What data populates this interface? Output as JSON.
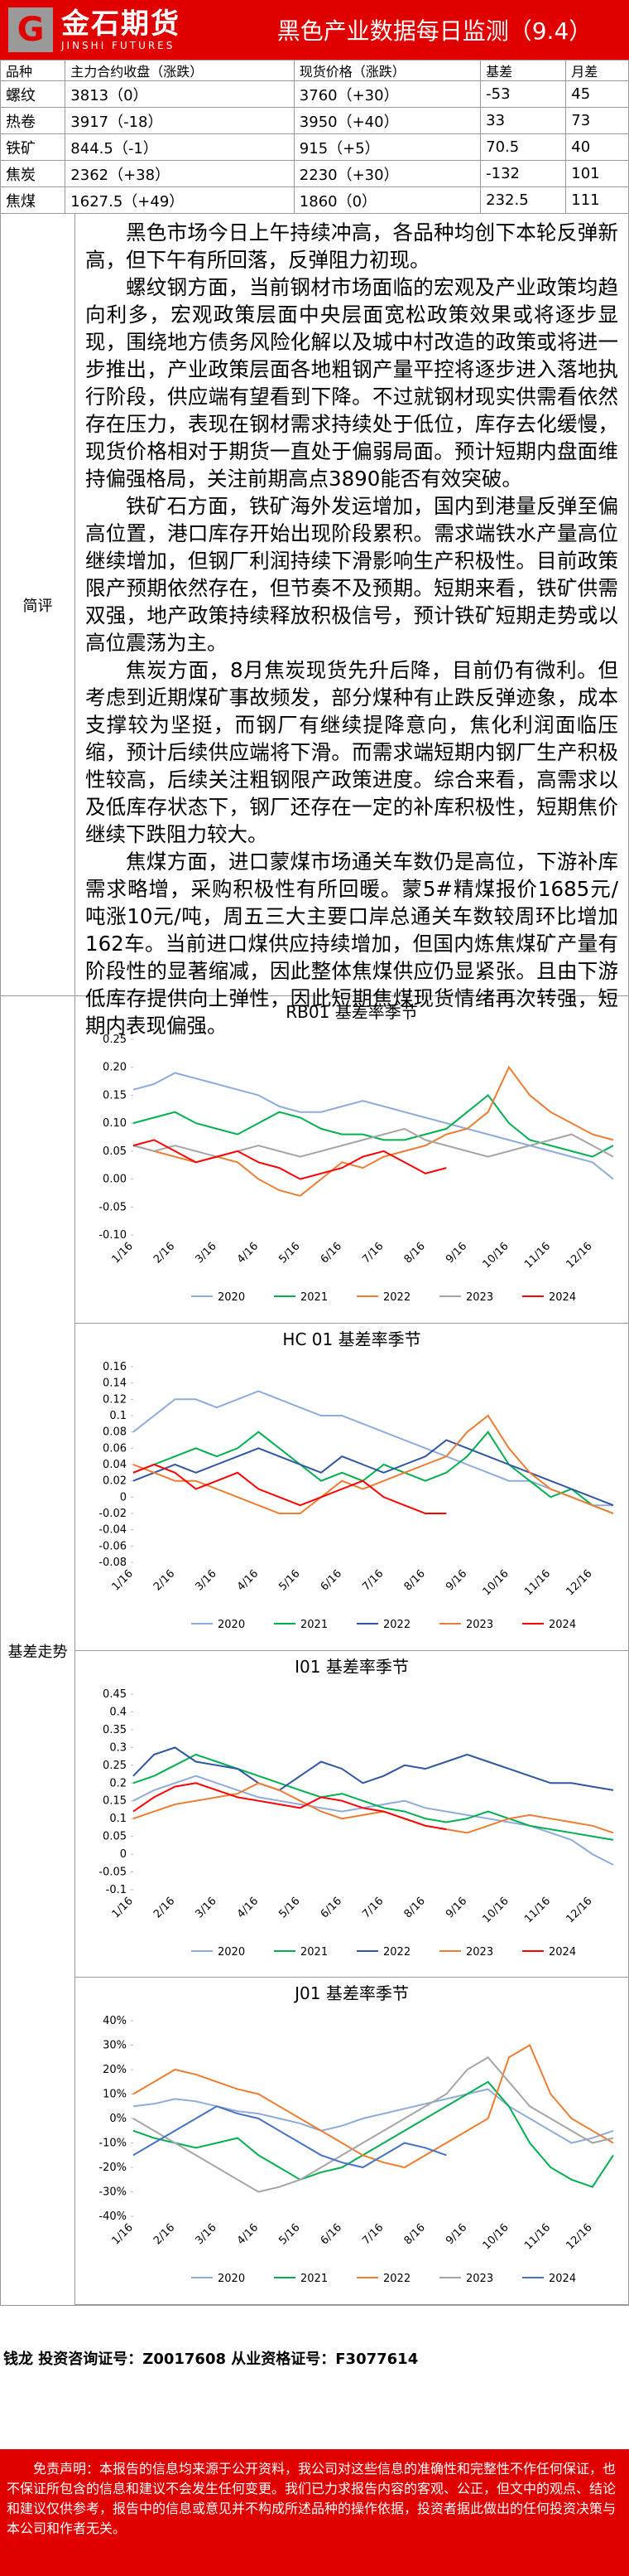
{
  "header": {
    "logo_cn": "金石期货",
    "logo_en": "JINSHI FUTURES",
    "title": "黑色产业数据每日监测（9.4）"
  },
  "table": {
    "header": [
      "品种",
      "主力合约收盘（涨跌）",
      "现货价格（涨跌）",
      "基差",
      "月差"
    ],
    "rows": [
      [
        "螺纹",
        "3813（0）",
        "3760（+30）",
        "-53",
        "45"
      ],
      [
        "热卷",
        "3917（-18）",
        "3950（+40）",
        "33",
        "73"
      ],
      [
        "铁矿",
        "844.5（-1）",
        "915（+5）",
        "70.5",
        "40"
      ],
      [
        "焦炭",
        "2362（+38）",
        "2230（+30）",
        "-132",
        "101"
      ],
      [
        "焦煤",
        "1627.5（+49）",
        "1860（0）",
        "232.5",
        "111"
      ]
    ]
  },
  "commentary": {
    "label": "简评",
    "paragraphs": [
      "黑色市场今日上午持续冲高，各品种均创下本轮反弹新高，但下午有所回落，反弹阻力初现。",
      "螺纹钢方面，当前钢材市场面临的宏观及产业政策均趋向利多，宏观政策层面中央层面宽松政策效果或将逐步显现，围绕地方债务风险化解以及城中村改造的政策或将进一步推出，产业政策层面各地粗钢产量平控将逐步进入落地执行阶段，供应端有望看到下降。不过就钢材现实供需看依然存在压力，表现在钢材需求持续处于低位，库存去化缓慢，现货价格相对于期货一直处于偏弱局面。预计短期内盘面维持偏强格局，关注前期高点3890能否有效突破。",
      "铁矿石方面，铁矿海外发运增加，国内到港量反弹至偏高位置，港口库存开始出现阶段累积。需求端铁水产量高位继续增加，但钢厂利润持续下滑影响生产积极性。目前政策限产预期依然存在，但节奏不及预期。短期来看，铁矿供需双强，地产政策持续释放积极信号，预计铁矿短期走势或以高位震荡为主。",
      "焦炭方面，8月焦炭现货先升后降，目前仍有微利。但考虑到近期煤矿事故频发，部分煤种有止跌反弹迹象，成本支撑较为坚挺，而钢厂有继续提降意向，焦化利润面临压缩，预计后续供应端将下滑。而需求端短期内钢厂生产积极性较高，后续关注粗钢限产政策进度。综合来看，高需求以及低库存状态下，钢厂还存在一定的补库积极性，短期焦价继续下跌阻力较大。",
      "焦煤方面，进口蒙煤市场通关车数仍是高位，下游补库需求略增，采购积极性有所回暖。蒙5#精煤报价1685元/吨涨10元/吨，周五三大主要口岸总通关车数较周环比增加162车。当前进口煤供应持续增加，但国内炼焦煤矿产量有阶段性的显著缩减，因此整体焦煤供应仍显紧张。且由下游低库存提供向上弹性，因此短期焦煤现货情绪再次转强，短期内表现偏强。"
    ]
  },
  "basis": {
    "label": "基差走势"
  },
  "chart_data": [
    {
      "type": "line",
      "title": "RB01 基差率季节",
      "categories": [
        "1/16",
        null,
        "2/16",
        null,
        "3/16",
        null,
        "4/16",
        null,
        "5/16",
        null,
        "6/16",
        null,
        "7/16",
        null,
        "8/16",
        null,
        "9/16",
        null,
        "10/16",
        null,
        "11/16",
        null,
        "12/16",
        null
      ],
      "ylim": [
        -0.1,
        0.25
      ],
      "yticks": [
        {
          "value": -0.1,
          "label": "-0.10"
        },
        {
          "value": -0.05,
          "label": "-0.05"
        },
        {
          "value": 0,
          "label": "0.00"
        },
        {
          "value": 0.05,
          "label": "0.05"
        },
        {
          "value": 0.1,
          "label": "0.10"
        },
        {
          "value": 0.15,
          "label": "0.15"
        },
        {
          "value": 0.2,
          "label": "0.20"
        },
        {
          "value": 0.25,
          "label": "0.25"
        }
      ],
      "grid": false,
      "series": [
        {
          "name": "2020",
          "color": "#8faadc",
          "values": [
            0.16,
            0.17,
            0.19,
            0.18,
            0.17,
            0.16,
            0.15,
            0.13,
            0.12,
            0.12,
            0.13,
            0.14,
            0.13,
            0.12,
            0.11,
            0.1,
            0.09,
            0.08,
            0.07,
            0.06,
            0.05,
            0.04,
            0.03,
            0.0
          ]
        },
        {
          "name": "2021",
          "color": "#00b050",
          "values": [
            0.1,
            0.11,
            0.12,
            0.1,
            0.09,
            0.08,
            0.1,
            0.12,
            0.11,
            0.09,
            0.08,
            0.08,
            0.07,
            0.07,
            0.08,
            0.09,
            0.12,
            0.15,
            0.1,
            0.07,
            0.06,
            0.05,
            0.04,
            0.06
          ]
        },
        {
          "name": "2022",
          "color": "#ed7d31",
          "values": [
            0.06,
            0.05,
            0.04,
            0.03,
            0.04,
            0.03,
            0.0,
            -0.02,
            -0.03,
            0.0,
            0.03,
            0.02,
            0.04,
            0.05,
            0.06,
            0.08,
            0.09,
            0.12,
            0.2,
            0.15,
            0.12,
            0.1,
            0.08,
            0.07
          ]
        },
        {
          "name": "2023",
          "color": "#a5a5a5",
          "values": [
            0.06,
            0.05,
            0.06,
            0.05,
            0.04,
            0.05,
            0.06,
            0.05,
            0.04,
            0.05,
            0.06,
            0.07,
            0.08,
            0.09,
            0.07,
            0.06,
            0.05,
            0.04,
            0.05,
            0.06,
            0.07,
            0.08,
            0.06,
            0.04
          ]
        },
        {
          "name": "2024",
          "color": "#ff0000",
          "values": [
            0.06,
            0.07,
            0.05,
            0.03,
            0.04,
            0.05,
            0.03,
            0.02,
            0.0,
            0.01,
            0.02,
            0.04,
            0.05,
            0.03,
            0.01,
            0.02,
            null,
            null,
            null,
            null,
            null,
            null,
            null,
            null
          ]
        }
      ]
    },
    {
      "type": "line",
      "title": "HC 01 基差率季节",
      "categories": [
        "1/16",
        null,
        "2/16",
        null,
        "3/16",
        null,
        "4/16",
        null,
        "5/16",
        null,
        "6/16",
        null,
        "7/16",
        null,
        "8/16",
        null,
        "9/16",
        null,
        "10/16",
        null,
        "11/16",
        null,
        "12/16",
        null
      ],
      "ylim": [
        -0.08,
        0.16
      ],
      "yticks": [
        -0.08,
        -0.06,
        -0.04,
        -0.02,
        0,
        0.02,
        0.04,
        0.06,
        0.08,
        0.1,
        0.12,
        0.14,
        0.16
      ],
      "grid": false,
      "series": [
        {
          "name": "2020",
          "color": "#8faadc",
          "values": [
            0.08,
            0.1,
            0.12,
            0.12,
            0.11,
            0.12,
            0.13,
            0.12,
            0.11,
            0.1,
            0.1,
            0.09,
            0.08,
            0.07,
            0.06,
            0.05,
            0.04,
            0.03,
            0.02,
            0.02,
            0.01,
            0.0,
            -0.01,
            -0.01
          ]
        },
        {
          "name": "2021",
          "color": "#00b050",
          "values": [
            0.03,
            0.04,
            0.05,
            0.06,
            0.05,
            0.06,
            0.08,
            0.06,
            0.04,
            0.02,
            0.03,
            0.02,
            0.04,
            0.03,
            0.02,
            0.03,
            0.05,
            0.08,
            0.04,
            0.02,
            0.0,
            0.01,
            -0.01,
            -0.02
          ]
        },
        {
          "name": "2022",
          "color": "#2f55a4",
          "values": [
            0.02,
            0.03,
            0.04,
            0.03,
            0.04,
            0.05,
            0.06,
            0.05,
            0.04,
            0.03,
            0.05,
            0.04,
            0.03,
            0.04,
            0.05,
            0.07,
            0.06,
            0.05,
            0.04,
            0.03,
            0.02,
            0.01,
            0.0,
            -0.01
          ]
        },
        {
          "name": "2023",
          "color": "#ed7d31",
          "values": [
            0.04,
            0.03,
            0.02,
            0.02,
            0.01,
            0.0,
            -0.01,
            -0.02,
            -0.02,
            0.0,
            0.02,
            0.01,
            0.02,
            0.03,
            0.04,
            0.05,
            0.08,
            0.1,
            0.06,
            0.03,
            0.01,
            0.0,
            -0.01,
            -0.02
          ]
        },
        {
          "name": "2024",
          "color": "#ff0000",
          "values": [
            0.03,
            0.04,
            0.03,
            0.01,
            0.02,
            0.03,
            0.01,
            0.0,
            -0.01,
            0.0,
            0.01,
            0.02,
            0.0,
            -0.01,
            -0.02,
            -0.02,
            null,
            null,
            null,
            null,
            null,
            null,
            null,
            null
          ]
        }
      ]
    },
    {
      "type": "line",
      "title": "I01 基差率季节",
      "categories": [
        "1/16",
        null,
        "2/16",
        null,
        "3/16",
        null,
        "4/16",
        null,
        "5/16",
        null,
        "6/16",
        null,
        "7/16",
        null,
        "8/16",
        null,
        "9/16",
        null,
        "10/16",
        null,
        "11/16",
        null,
        "12/16",
        null
      ],
      "ylim": [
        -0.1,
        0.45
      ],
      "yticks": [
        -0.1,
        -0.05,
        0,
        0.05,
        0.1,
        0.15,
        0.2,
        0.25,
        0.3,
        0.35,
        0.4,
        0.45
      ],
      "grid": false,
      "series": [
        {
          "name": "2020",
          "color": "#8faadc",
          "values": [
            0.15,
            0.18,
            0.2,
            0.22,
            0.2,
            0.18,
            0.16,
            0.15,
            0.14,
            0.13,
            0.12,
            0.13,
            0.14,
            0.15,
            0.13,
            0.12,
            0.11,
            0.1,
            0.09,
            0.08,
            0.06,
            0.04,
            0.0,
            -0.03
          ]
        },
        {
          "name": "2021",
          "color": "#00b050",
          "values": [
            0.2,
            0.22,
            0.25,
            0.28,
            0.26,
            0.24,
            0.22,
            0.2,
            0.18,
            0.16,
            0.17,
            0.15,
            0.13,
            0.12,
            0.1,
            0.09,
            0.1,
            0.12,
            0.1,
            0.08,
            0.07,
            0.06,
            0.05,
            0.04
          ]
        },
        {
          "name": "2022",
          "color": "#2f55a4",
          "values": [
            0.22,
            0.28,
            0.3,
            0.26,
            0.25,
            0.24,
            0.2,
            0.18,
            0.22,
            0.26,
            0.24,
            0.2,
            0.22,
            0.25,
            0.24,
            0.26,
            0.28,
            0.26,
            0.24,
            0.22,
            0.2,
            0.2,
            0.19,
            0.18
          ]
        },
        {
          "name": "2023",
          "color": "#ed7d31",
          "values": [
            0.1,
            0.12,
            0.14,
            0.15,
            0.16,
            0.17,
            0.2,
            0.18,
            0.15,
            0.12,
            0.1,
            0.11,
            0.12,
            0.1,
            0.08,
            0.07,
            0.06,
            0.08,
            0.1,
            0.11,
            0.1,
            0.09,
            0.08,
            0.06
          ]
        },
        {
          "name": "2024",
          "color": "#ff0000",
          "values": [
            0.12,
            0.16,
            0.19,
            0.2,
            0.18,
            0.16,
            0.15,
            0.14,
            0.13,
            0.16,
            0.15,
            0.13,
            0.12,
            0.1,
            0.08,
            0.07,
            null,
            null,
            null,
            null,
            null,
            null,
            null,
            null
          ]
        }
      ]
    },
    {
      "type": "line",
      "title": "J01 基差率季节",
      "categories": [
        "1/16",
        null,
        "2/16",
        null,
        "3/16",
        null,
        "4/16",
        null,
        "5/16",
        null,
        "6/16",
        null,
        "7/16",
        null,
        "8/16",
        null,
        "9/16",
        null,
        "10/16",
        null,
        "11/16",
        null,
        "12/16",
        null
      ],
      "ylim": [
        -40,
        40
      ],
      "yticks": [
        {
          "value": -40,
          "label": "-40%"
        },
        {
          "value": -30,
          "label": "-30%"
        },
        {
          "value": -20,
          "label": "-20%"
        },
        {
          "value": -10,
          "label": "-10%"
        },
        {
          "value": 0,
          "label": "0%"
        },
        {
          "value": 10,
          "label": "10%"
        },
        {
          "value": 20,
          "label": "20%"
        },
        {
          "value": 30,
          "label": "30%"
        },
        {
          "value": 40,
          "label": "40%"
        }
      ],
      "grid": false,
      "series": [
        {
          "name": "2020",
          "color": "#8faadc",
          "values": [
            5,
            6,
            8,
            7,
            5,
            3,
            2,
            0,
            -2,
            -5,
            -3,
            0,
            2,
            4,
            6,
            8,
            10,
            12,
            5,
            0,
            -5,
            -10,
            -8,
            -5
          ]
        },
        {
          "name": "2021",
          "color": "#00b050",
          "values": [
            -5,
            -8,
            -10,
            -12,
            -10,
            -8,
            -15,
            -20,
            -25,
            -22,
            -20,
            -15,
            -10,
            -5,
            0,
            5,
            10,
            15,
            5,
            -10,
            -20,
            -25,
            -28,
            -15
          ]
        },
        {
          "name": "2022",
          "color": "#ed7d31",
          "values": [
            10,
            15,
            20,
            18,
            15,
            12,
            10,
            5,
            0,
            -5,
            -10,
            -15,
            -18,
            -20,
            -15,
            -10,
            -5,
            0,
            25,
            30,
            10,
            0,
            -5,
            -10
          ]
        },
        {
          "name": "2023",
          "color": "#a5a5a5",
          "values": [
            0,
            -5,
            -10,
            -15,
            -20,
            -25,
            -30,
            -28,
            -25,
            -20,
            -15,
            -10,
            -5,
            0,
            5,
            10,
            20,
            25,
            15,
            5,
            0,
            -5,
            -10,
            -8
          ]
        },
        {
          "name": "2024",
          "color": "#4472c4",
          "values": [
            -15,
            -10,
            -5,
            0,
            5,
            2,
            0,
            -5,
            -10,
            -15,
            -18,
            -20,
            -15,
            -10,
            -12,
            -15,
            null,
            null,
            null,
            null,
            null,
            null,
            null,
            null
          ]
        }
      ]
    }
  ],
  "footer": {
    "analyst": "钱龙 投资咨询证号：Z0017608 从业资格证号：F3077614",
    "disclaimer": "免责声明：本报告的信息均来源于公开资料，我公司对这些信息的准确性和完整性不作任何保证，也不保证所包含的信息和建议不会发生任何变更。我们已力求报告内容的客观、公正，但文中的观点、结论和建议仅供参考，报告中的信息或意见并不构成所述品种的操作依据，投资者据此做出的任何投资决策与本公司和作者无关。"
  }
}
